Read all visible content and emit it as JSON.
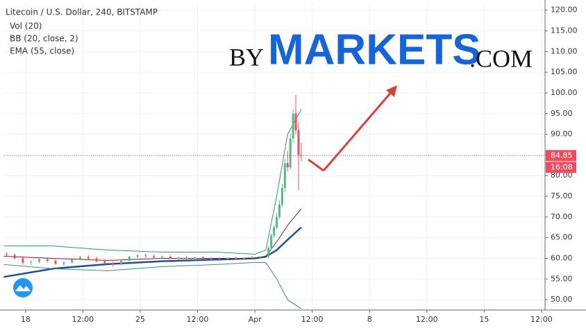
{
  "chart_data": {
    "type": "candlestick",
    "title": "Litecoin / U.S. Dollar, 240, BITSTAMP",
    "indicators": [
      "Vol (20)",
      "BB (20, close, 2)",
      "EMA (55, close)"
    ],
    "watermark": {
      "prefix": "BY",
      "brand": "MARKETS",
      "suffix": ".COM"
    },
    "xlim": [
      -8.1,
      190.3
    ],
    "ylim": [
      47.5,
      121.8
    ],
    "xticks": [
      {
        "value": 0,
        "label": "18"
      },
      {
        "value": 21,
        "label": "12:00"
      },
      {
        "value": 42,
        "label": "25"
      },
      {
        "value": 63,
        "label": "12:00"
      },
      {
        "value": 84,
        "label": "Apr"
      },
      {
        "value": 105,
        "label": "12:00"
      },
      {
        "value": 126,
        "label": "8"
      },
      {
        "value": 147,
        "label": "12:00"
      },
      {
        "value": 168,
        "label": "15"
      },
      {
        "value": 189,
        "label": "12:00"
      }
    ],
    "yticks": [
      {
        "value": 50,
        "label": "50.00"
      },
      {
        "value": 55,
        "label": "55.00"
      },
      {
        "value": 60,
        "label": "60.00"
      },
      {
        "value": 65,
        "label": "65.00"
      },
      {
        "value": 70,
        "label": "70.00"
      },
      {
        "value": 75,
        "label": "75.00"
      },
      {
        "value": 80,
        "label": "80.00"
      },
      {
        "value": 85,
        "label": "85.00"
      },
      {
        "value": 90,
        "label": "90.00"
      },
      {
        "value": 95,
        "label": "95.00"
      },
      {
        "value": 100,
        "label": "100.00"
      },
      {
        "value": 105,
        "label": "105.00"
      },
      {
        "value": 110,
        "label": "110.00"
      },
      {
        "value": 115,
        "label": "115.00"
      },
      {
        "value": 120,
        "label": "120.00"
      }
    ],
    "grid": true,
    "up_color": "#53b987",
    "down_color": "#eb4d5c",
    "candles": {
      "x": [
        -7,
        -4,
        -1,
        2,
        5,
        8,
        11,
        14,
        17,
        20,
        23,
        26,
        29,
        32,
        35,
        38,
        41,
        44,
        47,
        50,
        53,
        56,
        59,
        62,
        65,
        68,
        71,
        74,
        77,
        80,
        83,
        86,
        89,
        90,
        91,
        92,
        93,
        94,
        95,
        96,
        97,
        98,
        99,
        100,
        101
      ],
      "ohlc": [
        [
          61,
          61.5,
          60.5,
          60.8
        ],
        [
          60.8,
          61.2,
          59.8,
          60
        ],
        [
          60,
          60.5,
          58.5,
          59
        ],
        [
          59,
          59.6,
          58.3,
          59.2
        ],
        [
          59.2,
          60,
          58.8,
          59.8
        ],
        [
          59.8,
          60.3,
          59,
          59.4
        ],
        [
          59.4,
          59.8,
          58.4,
          58.7
        ],
        [
          58.7,
          59.3,
          58.2,
          59
        ],
        [
          59,
          60,
          58.8,
          59.8
        ],
        [
          59.8,
          60.6,
          59.5,
          60.3
        ],
        [
          60.3,
          60.8,
          59.8,
          60
        ],
        [
          60,
          60.4,
          59,
          59.3
        ],
        [
          59.3,
          59.8,
          58.5,
          58.8
        ],
        [
          58.8,
          59.2,
          58,
          58.5
        ],
        [
          58.5,
          59.6,
          58.3,
          59.4
        ],
        [
          59.4,
          60.6,
          59.2,
          60.4
        ],
        [
          60.4,
          61,
          60,
          60.7
        ],
        [
          60.7,
          61.2,
          60.2,
          60.5
        ],
        [
          60.5,
          60.9,
          59.9,
          60.2
        ],
        [
          60.2,
          60.7,
          59.7,
          60.4
        ],
        [
          60.4,
          60.8,
          59.8,
          60
        ],
        [
          60,
          60.5,
          59.6,
          60.1
        ],
        [
          60.1,
          60.6,
          59.7,
          59.9
        ],
        [
          59.9,
          60.4,
          59.5,
          60.2
        ],
        [
          60.2,
          60.5,
          59.6,
          59.8
        ],
        [
          59.8,
          60.3,
          59.5,
          60
        ],
        [
          60,
          60.3,
          59.6,
          59.9
        ],
        [
          59.9,
          60.2,
          59.6,
          60.1
        ],
        [
          60.1,
          60.4,
          59.7,
          59.9
        ],
        [
          59.9,
          60.3,
          59.6,
          60.1
        ],
        [
          60.1,
          60.6,
          59.8,
          60.3
        ],
        [
          60.3,
          60.6,
          59.9,
          60.4
        ],
        [
          60.4,
          63,
          60,
          62.5
        ],
        [
          62.5,
          66,
          62,
          65.5
        ],
        [
          65.5,
          68,
          65,
          67.5
        ],
        [
          67.5,
          71,
          67,
          70
        ],
        [
          70,
          74,
          69.5,
          73
        ],
        [
          73,
          78,
          72.5,
          77
        ],
        [
          77,
          84,
          76,
          83
        ],
        [
          83,
          86,
          81,
          82
        ],
        [
          82,
          90,
          81.5,
          89
        ],
        [
          89,
          96,
          88,
          95
        ],
        [
          95,
          99.5,
          90,
          91
        ],
        [
          91,
          93,
          76.5,
          85
        ],
        [
          85,
          88,
          83.5,
          84.85
        ]
      ]
    },
    "lines": [
      {
        "name": "EMA",
        "color": "#1f4e99",
        "width": 2.5,
        "x": [
          -8,
          10,
          30,
          50,
          70,
          84,
          88,
          92,
          96,
          101
        ],
        "values": [
          55.5,
          57.5,
          58.6,
          59.3,
          59.7,
          60,
          60.4,
          62,
          64.5,
          67.5
        ]
      },
      {
        "name": "BB upper",
        "color": "#2f8f8a",
        "width": 1,
        "x": [
          -8,
          10,
          30,
          50,
          70,
          84,
          88,
          92,
          96,
          101
        ],
        "values": [
          63,
          63,
          62,
          61.5,
          61.5,
          61,
          62,
          75,
          90,
          96
        ]
      },
      {
        "name": "BB basis",
        "color": "#8b1a1a",
        "width": 1,
        "x": [
          -8,
          10,
          30,
          50,
          70,
          84,
          88,
          92,
          96,
          101
        ],
        "values": [
          60.5,
          60,
          59.5,
          60,
          60,
          60,
          60.5,
          64,
          68,
          72
        ]
      },
      {
        "name": "BB lower",
        "color": "#2f8f8a",
        "width": 1,
        "x": [
          -8,
          10,
          30,
          50,
          70,
          84,
          88,
          92,
          96,
          101
        ],
        "values": [
          58.5,
          57.5,
          57,
          58,
          58.5,
          59,
          59,
          55,
          50,
          47.8
        ]
      }
    ],
    "last_price": {
      "value": 84.85,
      "label": "84.85"
    },
    "countdown": "16:08"
  }
}
